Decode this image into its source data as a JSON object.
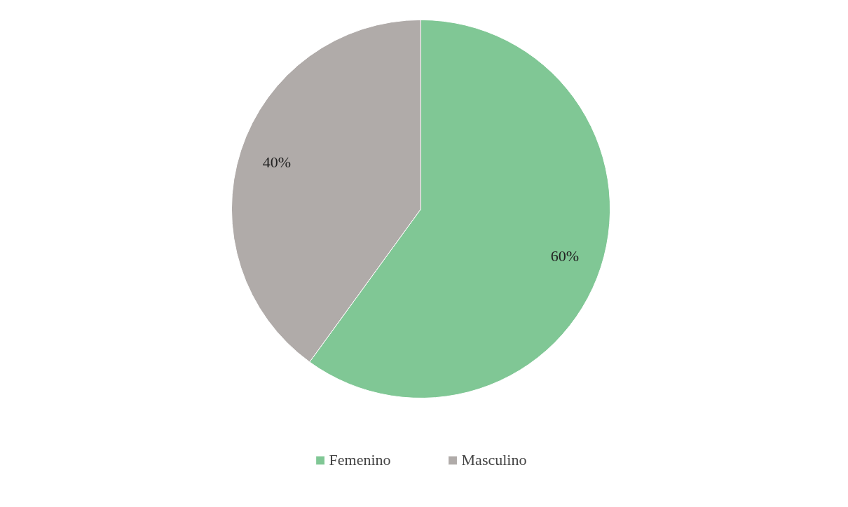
{
  "chart_data": {
    "type": "pie",
    "categories": [
      "Femenino",
      "Masculino"
    ],
    "values": [
      60,
      40
    ],
    "colors": [
      "#80c795",
      "#b0aba9"
    ],
    "value_labels": [
      "60%",
      "40%"
    ],
    "legend": "bottom"
  }
}
